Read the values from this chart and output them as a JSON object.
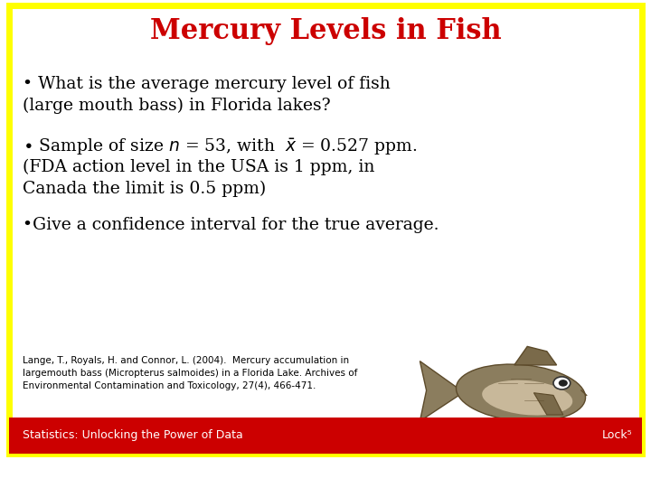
{
  "title": "Mercury Levels in Fish",
  "title_color": "#CC0000",
  "title_fontsize": 22,
  "background_color": "#FFFFFF",
  "border_color": "#FFFF00",
  "border_linewidth": 5,
  "body_fontsize": 13.5,
  "body_color": "#000000",
  "citation_line1": "Lange, T., Royals, H. and Connor, L. (2004).  Mercury accumulation in",
  "citation_line2": "largemouth bass (Micropterus salmoides) in a Florida Lake. Archives of",
  "citation_line3": "Environmental Contamination and Toxicology, 27(4), 466-471.",
  "citation_fontsize": 7.5,
  "footer_bg": "#CC0000",
  "footer_text_left": "Statistics: Unlocking the Power of Data",
  "footer_text_right": "Lock⁵",
  "footer_fontsize": 9,
  "footer_color": "#FFFFFF"
}
